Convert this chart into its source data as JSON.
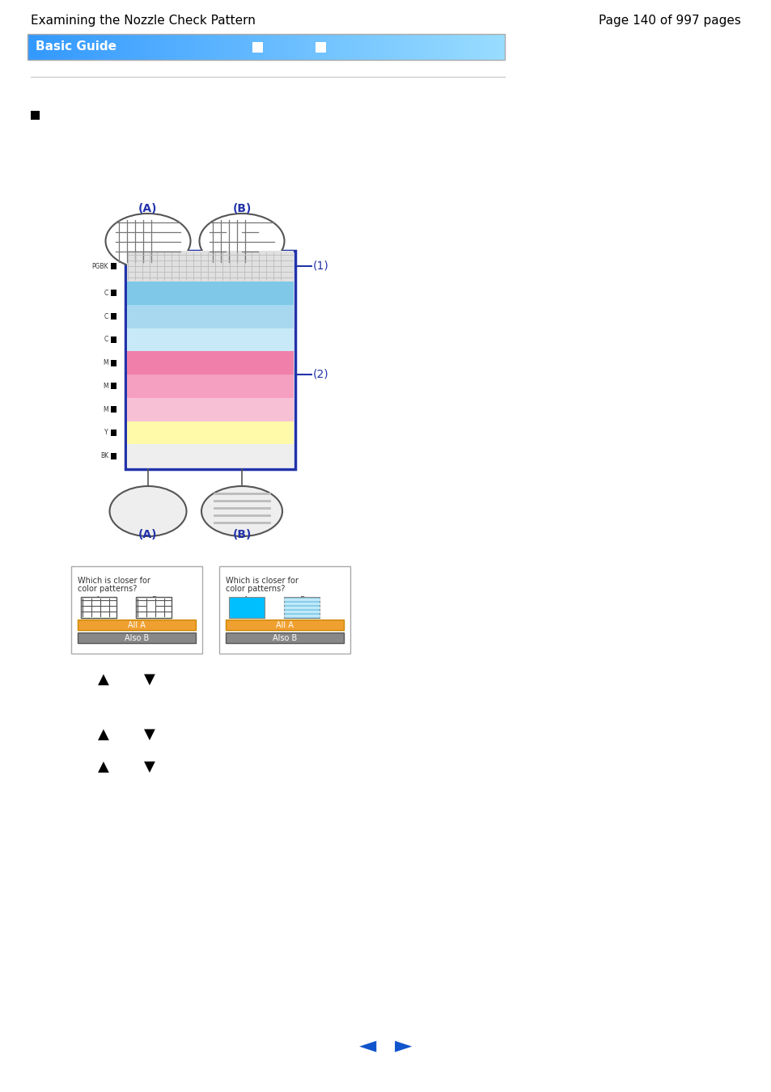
{
  "title_left": "Examining the Nozzle Check Pattern",
  "title_right": "Page 140 of 997 pages",
  "guide_text": "Basic Guide",
  "bg_color": "#ffffff",
  "header_line_color": "#cccccc",
  "guide_text_color": "#ffffff",
  "bullet_color": "#000000",
  "diagram_label_A_top": "(A)",
  "diagram_label_B_top": "(B)",
  "diagram_label_A_bottom": "(A)",
  "diagram_label_B_bottom": "(B)",
  "label_1": "(1)",
  "label_2": "(2)",
  "box_border_color": "#2233aa",
  "nav_arrow_color": "#1155cc",
  "orange_button_color": "#f0a030",
  "gray_button_color": "#888888",
  "ui_box_text1": "Which is closer for",
  "ui_box_text2": "color patterns?",
  "ui_box_allA": "All A",
  "ui_box_alsoB": "Also B"
}
